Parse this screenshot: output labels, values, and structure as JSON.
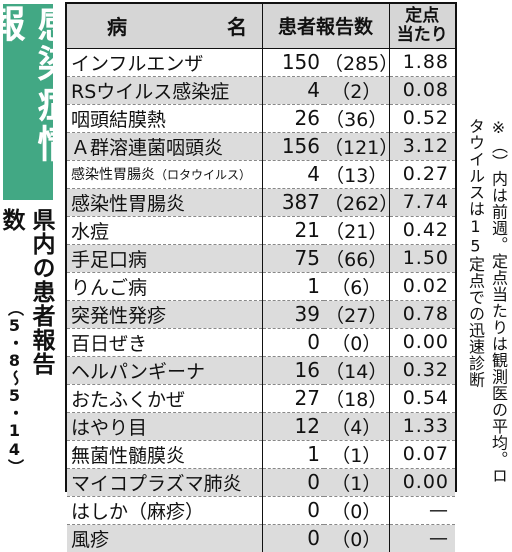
{
  "sidebar": {
    "title": "感染症情報",
    "subtitle": "県内の患者報告数",
    "period": "（5・8〜5・14）"
  },
  "table": {
    "headers": {
      "disease": "病　名",
      "reports": "患者報告数",
      "per_point_line1": "定点",
      "per_point_line2": "当たり"
    },
    "rows": [
      {
        "name": "インフルエンザ",
        "name_note": "",
        "current": "150",
        "previous": "（285）",
        "per_point": "1.88"
      },
      {
        "name": "RSウイルス感染症",
        "name_note": "",
        "current": "4",
        "previous": "（2）",
        "per_point": "0.08"
      },
      {
        "name": "咽頭結膜熱",
        "name_note": "",
        "current": "26",
        "previous": "（36）",
        "per_point": "0.52"
      },
      {
        "name": "Ａ群溶連菌咽頭炎",
        "name_note": "",
        "current": "156",
        "previous": "（121）",
        "per_point": "3.12"
      },
      {
        "name": "感染性胃腸炎",
        "name_note": "（ロタウイルス）",
        "current": "4",
        "previous": "（13）",
        "per_point": "0.27"
      },
      {
        "name": "感染性胃腸炎",
        "name_note": "",
        "current": "387",
        "previous": "（262）",
        "per_point": "7.74"
      },
      {
        "name": "水痘",
        "name_note": "",
        "current": "21",
        "previous": "（21）",
        "per_point": "0.42"
      },
      {
        "name": "手足口病",
        "name_note": "",
        "current": "75",
        "previous": "（66）",
        "per_point": "1.50"
      },
      {
        "name": "りんご病",
        "name_note": "",
        "current": "1",
        "previous": "（6）",
        "per_point": "0.02"
      },
      {
        "name": "突発性発疹",
        "name_note": "",
        "current": "39",
        "previous": "（27）",
        "per_point": "0.78"
      },
      {
        "name": "百日ぜき",
        "name_note": "",
        "current": "0",
        "previous": "（0）",
        "per_point": "0.00"
      },
      {
        "name": "ヘルパンギーナ",
        "name_note": "",
        "current": "16",
        "previous": "（14）",
        "per_point": "0.32"
      },
      {
        "name": "おたふくかぜ",
        "name_note": "",
        "current": "27",
        "previous": "（18）",
        "per_point": "0.54"
      },
      {
        "name": "はやり目",
        "name_note": "",
        "current": "12",
        "previous": "（4）",
        "per_point": "1.33"
      },
      {
        "name": "無菌性髄膜炎",
        "name_note": "",
        "current": "1",
        "previous": "（1）",
        "per_point": "0.07"
      },
      {
        "name": "マイコプラズマ肺炎",
        "name_note": "",
        "current": "0",
        "previous": "（1）",
        "per_point": "0.00"
      },
      {
        "name": "はしか（麻疹）",
        "name_note": "",
        "current": "0",
        "previous": "（0）",
        "per_point": "—"
      },
      {
        "name": "風疹",
        "name_note": "",
        "current": "0",
        "previous": "（0）",
        "per_point": "—"
      }
    ]
  },
  "note": "※（）内は前週。定点当たりは観測医の平均。ロタウイルスは15定点での迅速診断",
  "colors": {
    "title_bg": "#42a884",
    "stripe": "#dcdcdc",
    "header_bg": "#d6d6d6"
  }
}
